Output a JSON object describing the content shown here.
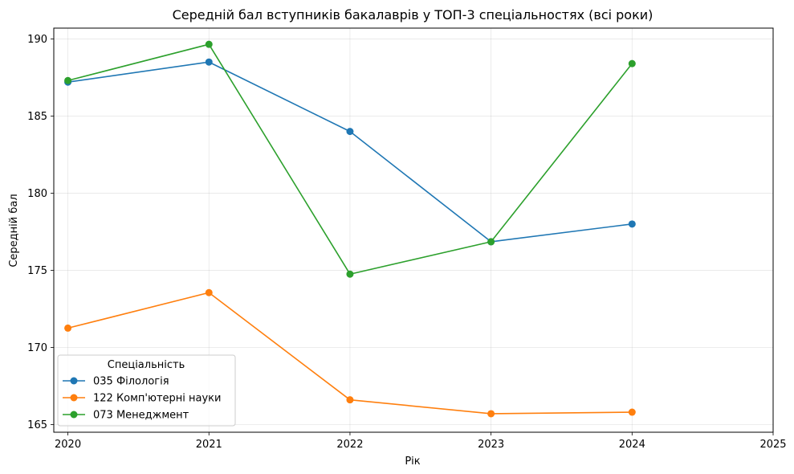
{
  "chart_data": {
    "type": "line",
    "title": "Середній бал вступників бакалаврів у ТОП-3 спеціальностях (всі роки)",
    "xlabel": "Рік",
    "ylabel": "Середній бал",
    "x": [
      2020,
      2021,
      2022,
      2023,
      2024
    ],
    "xticks": [
      2020,
      2021,
      2022,
      2023,
      2024,
      2025
    ],
    "yticks": [
      165,
      170,
      175,
      180,
      185,
      190
    ],
    "xlim": [
      2019.9,
      2025
    ],
    "ylim": [
      164.5,
      190.7
    ],
    "grid": true,
    "legend": {
      "title": "Спеціальність",
      "placement": "lower-left"
    },
    "series": [
      {
        "name": "035 Філологія",
        "color": "#1f77b4",
        "values": [
          187.2,
          188.5,
          184.0,
          176.85,
          178.0
        ]
      },
      {
        "name": "122 Комп'ютерні науки",
        "color": "#ff7f0e",
        "values": [
          171.25,
          173.55,
          166.6,
          165.7,
          165.8
        ]
      },
      {
        "name": "073 Менеджмент",
        "color": "#2ca02c",
        "values": [
          187.3,
          189.65,
          174.75,
          176.85,
          188.4
        ]
      }
    ]
  }
}
